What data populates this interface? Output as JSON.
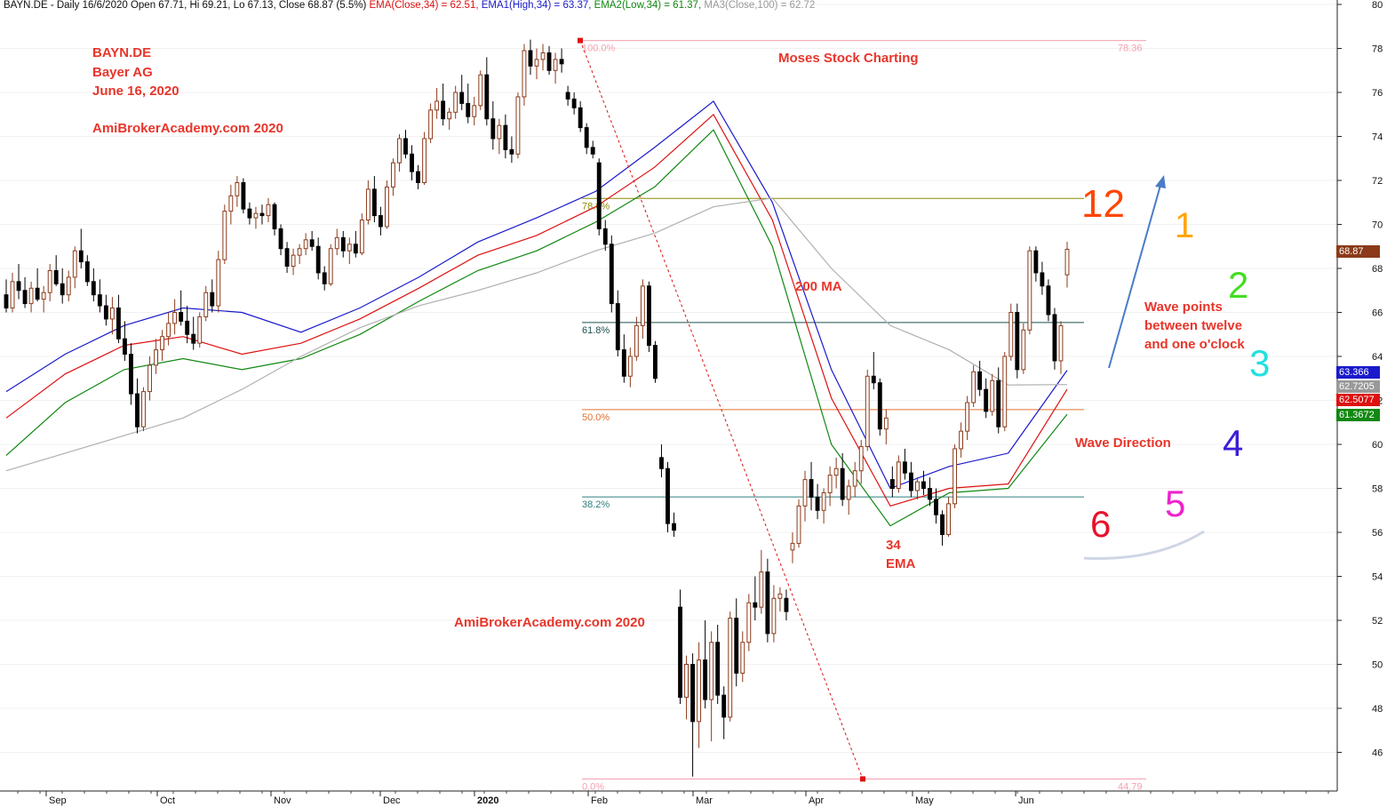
{
  "header": {
    "symbol": "BAYN.DE - Daily 16/6/2020 Open 67.71, Hi 69.21, Lo 67.13, Close 68.87 (5.5%)",
    "ema": "EMA(Close,34) = 62.51,",
    "ema1": "EMA1(High,34) = 63.37,",
    "ema2": "EMA2(Low,34) = 61.37,",
    "ma3": "MA3(Close,100) = 62.72"
  },
  "annotations": {
    "ticker": "BAYN.DE",
    "company": "Bayer AG",
    "date": "June 16, 2020",
    "site_top": "AmiBrokerAcademy.com  2020",
    "site_mid": "AmiBrokerAcademy.com  2020",
    "moses": "Moses Stock Charting",
    "ma200": "200 MA",
    "ema34_a": "34",
    "ema34_b": "EMA",
    "wave_points_1": "Wave points",
    "wave_points_2": "between twelve",
    "wave_points_3": "and one o'clock",
    "wave_direction": "Wave Direction"
  },
  "clock": {
    "n12": "12",
    "n1": "1",
    "n2": "2",
    "n3": "3",
    "n4": "4",
    "n5": "5",
    "n6": "6",
    "colors": {
      "n12": "#ff4500",
      "n1": "#ffa500",
      "n2": "#44dd22",
      "n3": "#22e0e0",
      "n4": "#3b1fd8",
      "n5": "#ee22cc",
      "n6": "#e8102a"
    }
  },
  "price_tags": {
    "last": "68.87",
    "ema1": "63.366",
    "ma3": "62.7205",
    "ema": "62.5077",
    "ema2": "61.3672",
    "colors": {
      "last": "#8b3a1a",
      "ema1": "#1a1acc",
      "ma3": "#999999",
      "ema": "#dd1111",
      "ema2": "#118811"
    }
  },
  "fib_labels": {
    "f100_left": "100.0%",
    "f100_right": "78.36",
    "f786": "78.6%",
    "f618": "61.8%",
    "f500": "50.0%",
    "f382": "38.2%",
    "f0_left": "0.0%",
    "f0_right": "44.79"
  },
  "chart_data": {
    "type": "candlestick",
    "y_axis": {
      "range": [
        44.0,
        80.0
      ],
      "ticks": [
        80,
        78,
        76,
        74,
        72,
        70,
        68,
        66,
        64,
        62,
        60,
        58,
        56,
        54,
        52,
        50,
        48,
        46
      ]
    },
    "x_axis": {
      "months": [
        "Sep",
        "Oct",
        "Nov",
        "Dec",
        "2020",
        "Feb",
        "Mar",
        "Apr",
        "May",
        "Jun"
      ]
    },
    "fibonacci": {
      "high": 78.36,
      "low": 44.79,
      "levels": [
        {
          "label": "100.0%",
          "price": 78.36,
          "color": "#f4a0b0"
        },
        {
          "label": "78.6%",
          "price": 71.18,
          "color": "#8b8b00"
        },
        {
          "label": "61.8%",
          "price": 65.54,
          "color": "#1e4f4f"
        },
        {
          "label": "50.0%",
          "price": 61.58,
          "color": "#e07030"
        },
        {
          "label": "38.2%",
          "price": 57.61,
          "color": "#2e7f7f"
        },
        {
          "label": "0.0%",
          "price": 44.79,
          "color": "#f4a0b0"
        }
      ]
    },
    "series": [
      {
        "name": "EMA1(High,34)",
        "color": "#1a1acc",
        "values": [
          62.4,
          64.1,
          65.4,
          66.2,
          66.0,
          65.1,
          66.2,
          67.6,
          69.2,
          70.3,
          71.5,
          73.5,
          75.6,
          71.0,
          63.4,
          58.0,
          59.0,
          59.6,
          63.37
        ]
      },
      {
        "name": "EMA(Close,34)",
        "color": "#dd1111",
        "values": [
          61.2,
          63.2,
          64.5,
          64.9,
          64.1,
          64.6,
          65.7,
          67.1,
          68.6,
          69.5,
          70.8,
          72.6,
          75.0,
          70.2,
          62.1,
          57.2,
          58.0,
          58.2,
          62.51
        ]
      },
      {
        "name": "EMA2(Low,34)",
        "color": "#118811",
        "values": [
          59.5,
          61.9,
          63.4,
          63.9,
          63.4,
          63.9,
          65.0,
          66.5,
          67.9,
          68.8,
          70.1,
          71.7,
          74.3,
          69.0,
          60.0,
          56.3,
          57.8,
          58.0,
          61.37
        ]
      },
      {
        "name": "MA3(Close,100)",
        "color": "#b0b0b0",
        "values": [
          58.8,
          59.6,
          60.4,
          61.2,
          62.5,
          64.0,
          65.3,
          66.3,
          67.0,
          67.8,
          68.8,
          69.6,
          70.8,
          71.2,
          68.0,
          65.4,
          64.3,
          62.7,
          62.72
        ]
      }
    ],
    "candles": [
      [
        66.8,
        67.5,
        66.0,
        66.2
      ],
      [
        66.2,
        67.8,
        66.0,
        67.4
      ],
      [
        67.4,
        68.2,
        66.6,
        67.0
      ],
      [
        67.0,
        67.6,
        66.2,
        66.4
      ],
      [
        66.4,
        67.4,
        66.0,
        67.1
      ],
      [
        67.1,
        68.0,
        66.5,
        66.6
      ],
      [
        66.6,
        67.2,
        66.0,
        66.9
      ],
      [
        66.9,
        68.2,
        66.5,
        67.9
      ],
      [
        67.9,
        68.6,
        67.2,
        67.3
      ],
      [
        67.3,
        68.0,
        66.4,
        66.8
      ],
      [
        66.8,
        67.9,
        66.5,
        67.6
      ],
      [
        67.6,
        69.0,
        67.1,
        68.8
      ],
      [
        68.8,
        69.8,
        68.0,
        68.3
      ],
      [
        68.3,
        68.6,
        67.2,
        67.4
      ],
      [
        67.4,
        68.0,
        66.5,
        66.8
      ],
      [
        66.8,
        67.5,
        66.0,
        66.3
      ],
      [
        66.3,
        66.8,
        65.4,
        65.7
      ],
      [
        65.7,
        66.7,
        65.0,
        66.2
      ],
      [
        66.2,
        66.8,
        64.6,
        64.8
      ],
      [
        64.8,
        65.6,
        63.8,
        64.1
      ],
      [
        64.1,
        64.6,
        61.8,
        62.3
      ],
      [
        62.3,
        63.0,
        60.5,
        60.8
      ],
      [
        60.8,
        62.6,
        60.6,
        62.4
      ],
      [
        62.4,
        64.0,
        62.0,
        63.6
      ],
      [
        63.6,
        64.8,
        63.2,
        64.3
      ],
      [
        64.3,
        65.2,
        63.8,
        64.9
      ],
      [
        64.9,
        66.0,
        64.5,
        65.5
      ],
      [
        65.5,
        66.6,
        65.0,
        66.0
      ],
      [
        66.0,
        67.0,
        65.4,
        65.6
      ],
      [
        65.6,
        66.3,
        64.6,
        65.0
      ],
      [
        65.0,
        65.8,
        64.3,
        64.6
      ],
      [
        64.6,
        66.0,
        64.4,
        65.8
      ],
      [
        65.8,
        67.2,
        65.6,
        66.9
      ],
      [
        66.9,
        67.5,
        66.0,
        66.3
      ],
      [
        66.3,
        68.8,
        66.0,
        68.4
      ],
      [
        68.4,
        70.9,
        68.2,
        70.6
      ],
      [
        70.6,
        71.8,
        70.0,
        71.3
      ],
      [
        71.3,
        72.2,
        70.8,
        71.9
      ],
      [
        71.9,
        72.1,
        70.5,
        70.7
      ],
      [
        70.7,
        71.0,
        70.0,
        70.3
      ],
      [
        70.3,
        70.8,
        69.8,
        70.5
      ],
      [
        70.5,
        70.9,
        70.0,
        70.4
      ],
      [
        70.4,
        71.2,
        70.1,
        70.9
      ],
      [
        70.9,
        71.0,
        69.5,
        69.8
      ],
      [
        69.8,
        70.0,
        68.6,
        68.9
      ],
      [
        68.9,
        69.2,
        67.8,
        68.1
      ],
      [
        68.1,
        68.9,
        67.7,
        68.6
      ],
      [
        68.6,
        69.1,
        68.2,
        68.9
      ],
      [
        68.9,
        69.6,
        68.6,
        69.3
      ],
      [
        69.3,
        69.7,
        68.8,
        69.0
      ],
      [
        69.0,
        69.4,
        67.5,
        67.8
      ],
      [
        67.8,
        68.1,
        67.0,
        67.3
      ],
      [
        67.3,
        69.1,
        67.2,
        68.9
      ],
      [
        68.9,
        69.8,
        68.6,
        69.4
      ],
      [
        69.4,
        69.7,
        68.5,
        68.8
      ],
      [
        68.8,
        69.4,
        68.2,
        69.1
      ],
      [
        69.1,
        69.7,
        68.5,
        68.7
      ],
      [
        68.7,
        70.5,
        68.6,
        70.2
      ],
      [
        70.2,
        72.0,
        70.0,
        71.6
      ],
      [
        71.6,
        72.2,
        70.1,
        70.4
      ],
      [
        70.4,
        70.8,
        69.5,
        69.9
      ],
      [
        69.9,
        72.0,
        69.8,
        71.7
      ],
      [
        71.7,
        73.0,
        71.3,
        72.8
      ],
      [
        72.8,
        74.1,
        72.4,
        73.9
      ],
      [
        73.9,
        74.3,
        73.0,
        73.2
      ],
      [
        73.2,
        73.6,
        72.0,
        72.4
      ],
      [
        72.4,
        72.7,
        71.6,
        71.9
      ],
      [
        71.9,
        74.2,
        71.8,
        73.9
      ],
      [
        73.9,
        75.5,
        73.7,
        75.2
      ],
      [
        75.2,
        76.2,
        74.8,
        75.6
      ],
      [
        75.6,
        76.4,
        74.5,
        74.8
      ],
      [
        74.8,
        75.3,
        74.3,
        75.1
      ],
      [
        75.1,
        76.3,
        74.8,
        76.0
      ],
      [
        76.0,
        76.8,
        75.2,
        75.5
      ],
      [
        75.5,
        76.4,
        74.6,
        74.9
      ],
      [
        74.9,
        75.8,
        74.5,
        75.4
      ],
      [
        75.4,
        77.0,
        75.2,
        76.8
      ],
      [
        76.8,
        77.6,
        74.5,
        74.8
      ],
      [
        74.8,
        75.6,
        73.4,
        73.9
      ],
      [
        73.9,
        74.8,
        73.2,
        74.5
      ],
      [
        74.5,
        75.0,
        73.0,
        73.4
      ],
      [
        73.4,
        74.0,
        72.8,
        73.2
      ],
      [
        73.2,
        76.0,
        73.0,
        75.8
      ],
      [
        75.8,
        78.2,
        75.4,
        77.9
      ],
      [
        77.9,
        78.4,
        76.8,
        77.2
      ],
      [
        77.2,
        78.0,
        76.6,
        77.5
      ],
      [
        77.5,
        78.2,
        77.0,
        77.8
      ],
      [
        77.8,
        78.1,
        76.8,
        77.0
      ],
      [
        77.0,
        77.8,
        76.4,
        77.5
      ],
      [
        77.5,
        78.0,
        76.9,
        77.3
      ],
      [
        76.0,
        76.3,
        75.4,
        75.7
      ],
      [
        75.7,
        76.0,
        75.0,
        75.3
      ],
      [
        75.3,
        75.6,
        74.2,
        74.4
      ],
      [
        74.4,
        74.6,
        73.2,
        73.5
      ],
      [
        73.5,
        73.8,
        73.0,
        73.2
      ],
      [
        72.8,
        73.0,
        69.5,
        69.8
      ],
      [
        69.8,
        70.2,
        68.8,
        69.1
      ],
      [
        69.1,
        69.5,
        66.0,
        66.4
      ],
      [
        66.4,
        67.0,
        64.0,
        64.3
      ],
      [
        64.3,
        65.0,
        62.8,
        63.1
      ],
      [
        63.1,
        64.4,
        62.6,
        64.0
      ],
      [
        64.0,
        65.8,
        63.8,
        65.4
      ],
      [
        65.4,
        67.5,
        64.8,
        67.2
      ],
      [
        67.2,
        67.4,
        64.2,
        64.5
      ],
      [
        64.5,
        64.7,
        62.8,
        63.0
      ],
      [
        59.4,
        60.0,
        58.5,
        58.9
      ],
      [
        58.9,
        59.2,
        56.0,
        56.4
      ],
      [
        56.4,
        56.9,
        55.8,
        56.1
      ],
      [
        52.6,
        53.4,
        48.2,
        48.5
      ],
      [
        48.5,
        50.4,
        47.5,
        50.0
      ],
      [
        50.0,
        50.5,
        44.9,
        47.4
      ],
      [
        47.4,
        51.0,
        46.2,
        50.2
      ],
      [
        50.2,
        52.0,
        48.0,
        48.4
      ],
      [
        48.4,
        51.5,
        46.5,
        51.0
      ],
      [
        51.0,
        51.8,
        48.2,
        48.6
      ],
      [
        48.6,
        49.0,
        46.6,
        47.6
      ],
      [
        47.6,
        52.4,
        47.4,
        52.1
      ],
      [
        52.1,
        53.0,
        49.0,
        49.6
      ],
      [
        49.6,
        51.5,
        49.2,
        51.0
      ],
      [
        51.0,
        53.2,
        50.6,
        52.8
      ],
      [
        52.8,
        54.0,
        52.0,
        52.6
      ],
      [
        52.6,
        55.2,
        52.3,
        54.2
      ],
      [
        54.2,
        54.8,
        51.0,
        51.4
      ],
      [
        51.4,
        53.6,
        51.0,
        53.0
      ],
      [
        53.0,
        53.5,
        52.4,
        53.2
      ],
      [
        53.0,
        53.4,
        52.0,
        52.4
      ],
      [
        55.2,
        56.0,
        54.6,
        55.5
      ],
      [
        55.5,
        57.5,
        55.3,
        57.2
      ],
      [
        57.2,
        58.8,
        56.5,
        58.4
      ],
      [
        58.4,
        59.2,
        57.0,
        57.6
      ],
      [
        57.6,
        58.2,
        56.6,
        57.0
      ],
      [
        57.0,
        58.0,
        56.4,
        57.8
      ],
      [
        57.8,
        59.0,
        57.2,
        58.6
      ],
      [
        58.6,
        59.4,
        58.0,
        58.9
      ],
      [
        58.9,
        59.6,
        57.2,
        57.5
      ],
      [
        57.5,
        58.4,
        56.8,
        58.1
      ],
      [
        58.1,
        59.2,
        57.6,
        58.8
      ],
      [
        58.8,
        60.2,
        58.2,
        59.9
      ],
      [
        59.9,
        63.4,
        59.7,
        63.1
      ],
      [
        63.1,
        64.2,
        62.5,
        62.8
      ],
      [
        62.8,
        63.0,
        60.4,
        60.7
      ],
      [
        60.7,
        61.6,
        60.0,
        61.2
      ],
      [
        58.4,
        59.0,
        57.6,
        58.0
      ],
      [
        58.0,
        59.5,
        57.8,
        59.2
      ],
      [
        59.2,
        59.8,
        58.4,
        58.7
      ],
      [
        58.7,
        59.2,
        57.6,
        57.9
      ],
      [
        57.9,
        58.5,
        57.5,
        58.3
      ],
      [
        58.3,
        58.8,
        57.7,
        58.0
      ],
      [
        58.0,
        58.5,
        57.2,
        57.5
      ],
      [
        57.5,
        58.0,
        56.4,
        56.8
      ],
      [
        56.8,
        57.0,
        55.4,
        55.9
      ],
      [
        55.9,
        57.6,
        55.8,
        57.3
      ],
      [
        57.3,
        60.0,
        57.1,
        59.8
      ],
      [
        59.8,
        61.0,
        59.4,
        60.6
      ],
      [
        60.6,
        62.2,
        60.2,
        61.9
      ],
      [
        61.9,
        63.6,
        61.7,
        63.3
      ],
      [
        63.3,
        63.8,
        62.2,
        62.5
      ],
      [
        62.5,
        63.0,
        61.2,
        61.5
      ],
      [
        61.5,
        63.2,
        61.3,
        62.9
      ],
      [
        62.9,
        63.5,
        60.5,
        60.8
      ],
      [
        60.8,
        64.2,
        60.6,
        64.0
      ],
      [
        64.0,
        66.4,
        63.8,
        66.0
      ],
      [
        66.0,
        66.4,
        63.0,
        63.4
      ],
      [
        63.4,
        65.5,
        63.2,
        65.2
      ],
      [
        65.2,
        69.0,
        65.0,
        68.8
      ],
      [
        68.8,
        69.0,
        67.4,
        67.8
      ],
      [
        67.8,
        68.3,
        66.8,
        67.2
      ],
      [
        67.2,
        67.5,
        65.6,
        65.9
      ],
      [
        65.9,
        66.2,
        63.4,
        63.8
      ],
      [
        63.8,
        65.6,
        63.2,
        65.4
      ],
      [
        67.71,
        69.21,
        67.13,
        68.87
      ]
    ]
  }
}
